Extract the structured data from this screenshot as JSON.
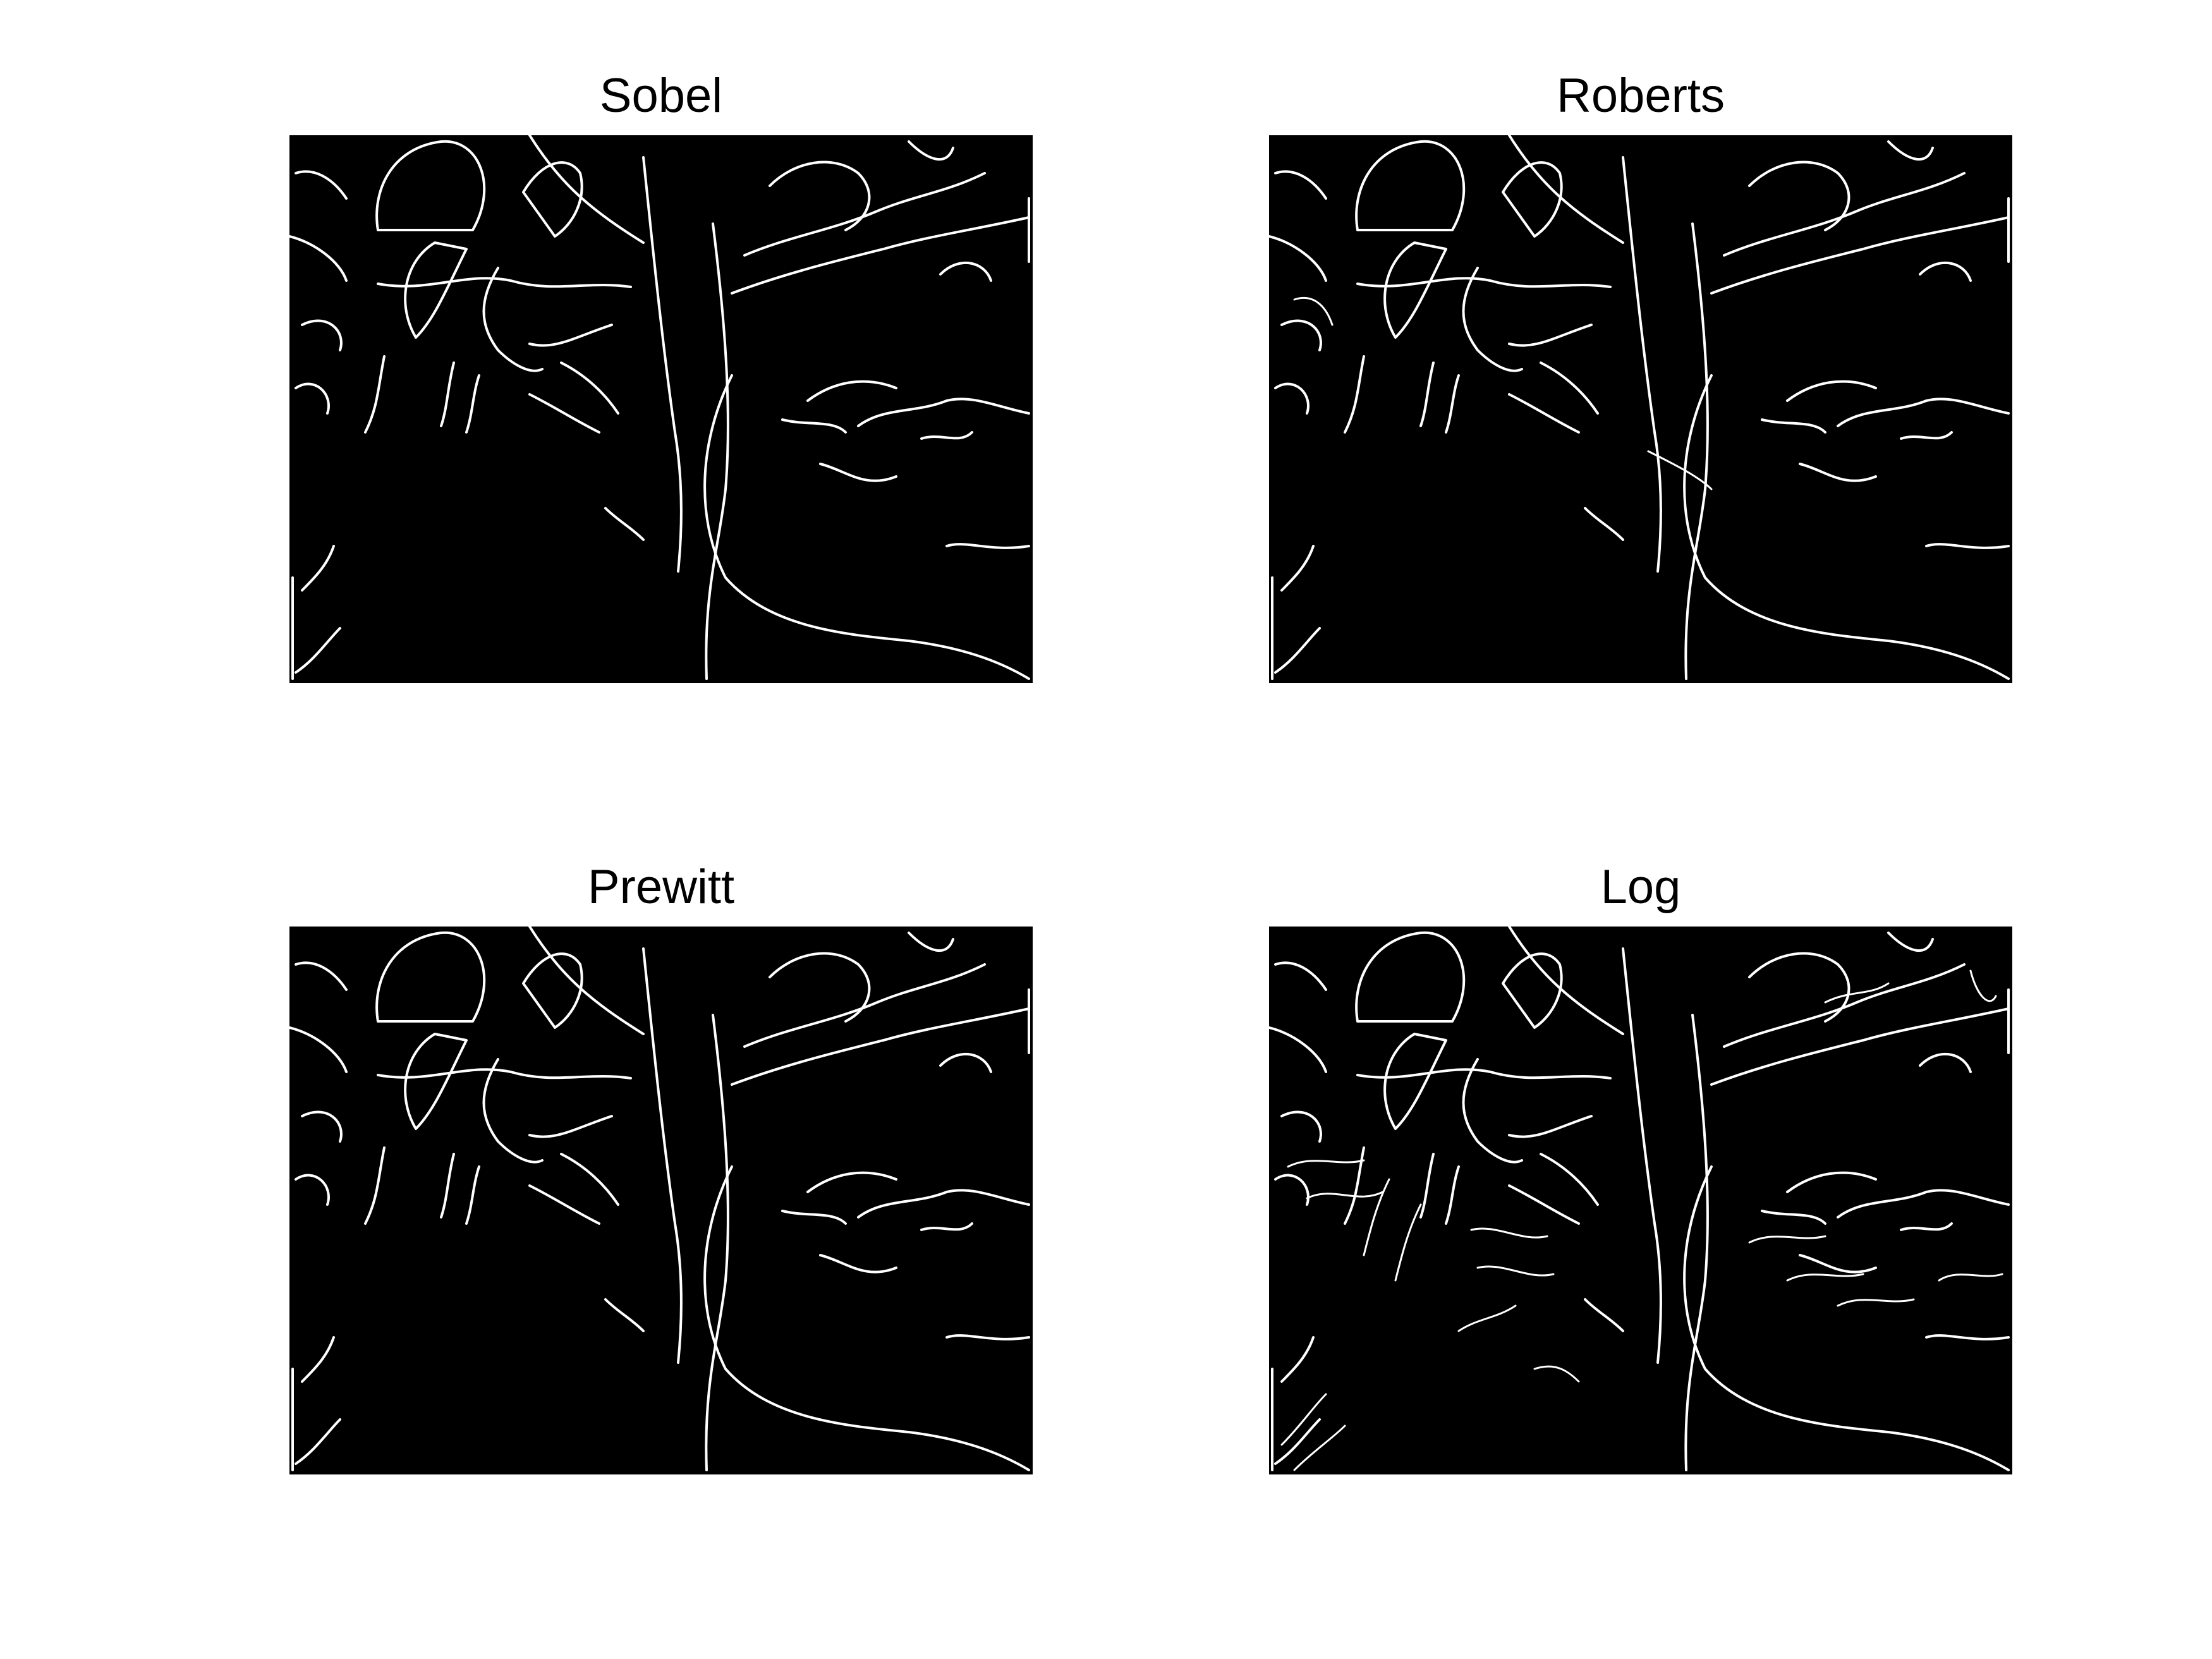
{
  "figure": {
    "panels": [
      {
        "title": "Sobel"
      },
      {
        "title": "Roberts"
      },
      {
        "title": "Prewitt"
      },
      {
        "title": "Log"
      }
    ]
  },
  "colors": {
    "background": "#ffffff",
    "image_background": "#000000",
    "edges": "#ffffff",
    "title_text": "#000000"
  }
}
